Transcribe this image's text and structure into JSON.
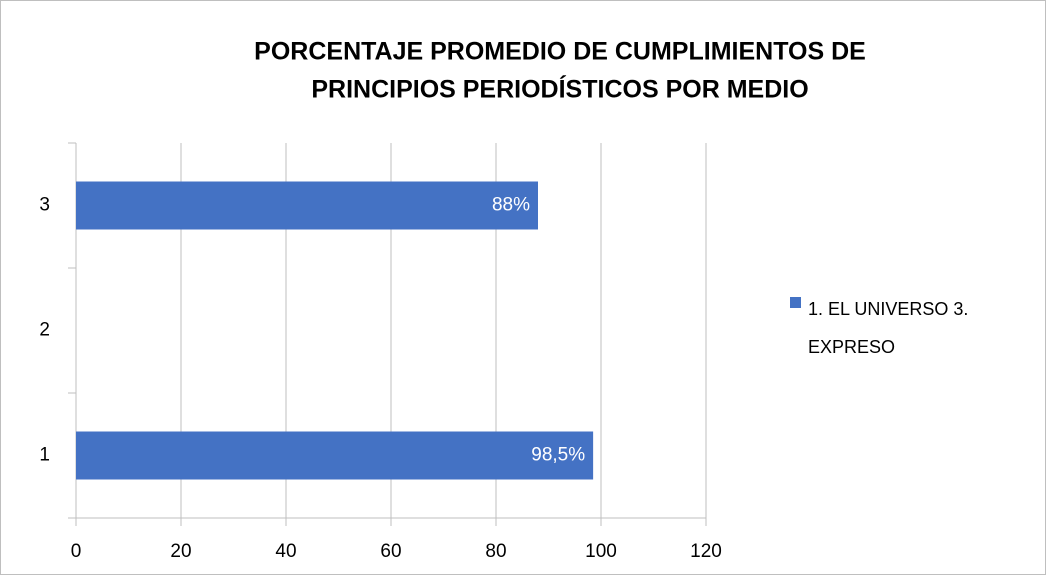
{
  "chart_data": {
    "type": "hbar",
    "title": [
      "PORCENTAJE PROMEDIO DE CUMPLIMIENTOS DE",
      "PRINCIPIOS PERIODÍSTICOS POR MEDIO"
    ],
    "categories": [
      "1",
      "2",
      "3"
    ],
    "series": [
      {
        "name": "1. EL UNIVERSO 3. EXPRESO",
        "color": "#4472c4",
        "values": [
          98.5,
          null,
          88
        ],
        "value_labels": [
          "98,5%",
          null,
          "88%"
        ]
      }
    ],
    "xlim": [
      0,
      120
    ],
    "xticks": [
      0,
      20,
      40,
      60,
      80,
      100,
      120
    ],
    "grid": true,
    "legend": "right"
  }
}
